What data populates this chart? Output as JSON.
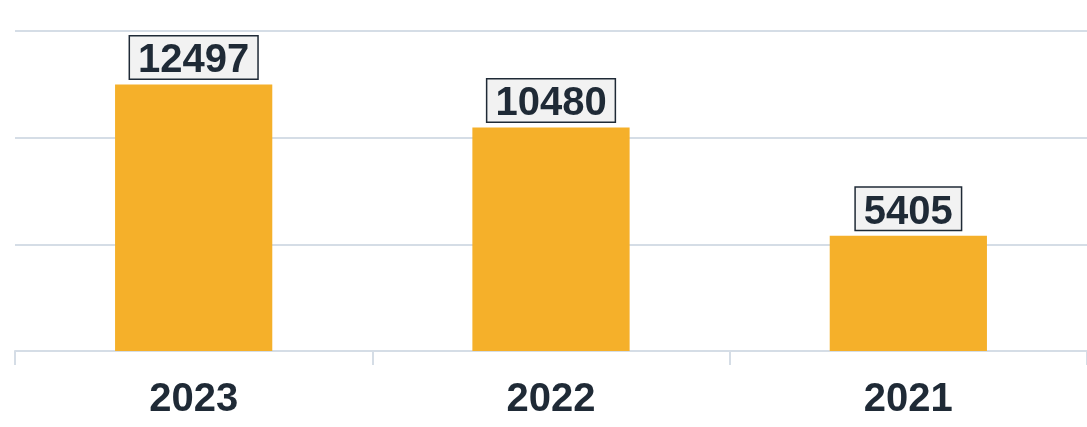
{
  "chart_data": {
    "type": "bar",
    "categories": [
      "2023",
      "2022",
      "2021"
    ],
    "values": [
      12497,
      10480,
      5405
    ],
    "color": "#f5b02a",
    "ylim": [
      0,
      15000
    ],
    "yticks": [
      {
        "value": 0,
        "label": null
      },
      {
        "value": 5000,
        "label": null
      },
      {
        "value": 10000,
        "label": null
      },
      {
        "value": 15000,
        "label": null
      }
    ],
    "tick_labels": "x",
    "grid": "y",
    "data_labels": true
  }
}
